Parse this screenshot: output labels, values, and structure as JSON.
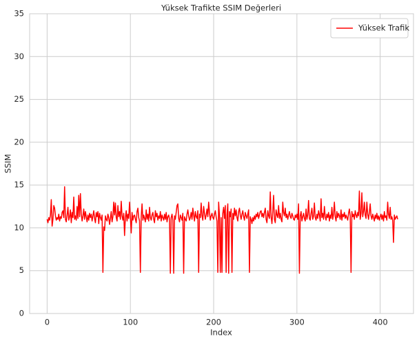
{
  "chart_data": {
    "type": "line",
    "title": "Yüksek Trafikte SSIM Değerleri",
    "x_label": "Index",
    "y_label": "SSIM",
    "xlim": [
      -21,
      440
    ],
    "xticks": [
      0,
      100,
      200,
      300,
      400
    ],
    "ylim": [
      0,
      35
    ],
    "yticks": [
      0,
      5,
      10,
      15,
      20,
      25,
      30,
      35
    ],
    "grid": true,
    "legend": "upper right",
    "series": [
      {
        "name": "Yüksek Trafik",
        "color": "#ff0000",
        "values": [
          11.0,
          10.6,
          11.2,
          10.9,
          11.5,
          13.3,
          10.2,
          11.0,
          12.6,
          12.3,
          11.4,
          10.9,
          11.2,
          11.0,
          11.6,
          10.8,
          11.3,
          11.1,
          11.8,
          12.0,
          11.2,
          14.8,
          11.0,
          10.7,
          11.5,
          12.4,
          10.9,
          11.3,
          12.1,
          10.6,
          11.8,
          11.2,
          13.6,
          11.0,
          11.4,
          10.9,
          12.5,
          11.1,
          13.8,
          11.3,
          14.0,
          11.6,
          10.8,
          11.4,
          12.2,
          11.0,
          11.9,
          11.3,
          10.7,
          11.5,
          10.9,
          11.7,
          11.2,
          11.6,
          10.8,
          11.4,
          12.0,
          11.1,
          10.6,
          11.8,
          11.3,
          11.9,
          10.5,
          11.7,
          11.2,
          10.9,
          11.5,
          4.8,
          10.1,
          9.7,
          11.4,
          11.0,
          10.8,
          11.6,
          11.2,
          10.4,
          11.1,
          11.9,
          10.7,
          11.3,
          13.0,
          11.5,
          12.9,
          11.2,
          10.8,
          12.6,
          11.3,
          11.9,
          11.0,
          13.1,
          11.4,
          10.9,
          11.7,
          9.1,
          11.2,
          12.0,
          10.8,
          11.6,
          11.1,
          13.0,
          11.3,
          9.4,
          11.8,
          10.9,
          11.4,
          11.5,
          11.0,
          10.6,
          11.9,
          12.3,
          11.2,
          10.8,
          4.8,
          11.3,
          12.8,
          10.9,
          11.5,
          11.1,
          10.7,
          12.1,
          11.0,
          11.6,
          10.8,
          12.4,
          11.2,
          10.9,
          11.5,
          11.8,
          11.0,
          10.6,
          12.0,
          11.3,
          11.7,
          10.9,
          11.4,
          11.1,
          11.9,
          10.8,
          11.5,
          11.2,
          10.9,
          11.6,
          11.0,
          11.8,
          10.7,
          11.3,
          11.5,
          11.0,
          4.7,
          11.2,
          11.6,
          10.9,
          4.7,
          11.4,
          11.0,
          11.8,
          12.6,
          12.8,
          11.1,
          10.7,
          11.5,
          11.2,
          10.9,
          11.7,
          4.7,
          11.3,
          11.0,
          10.8,
          11.6,
          12.1,
          11.4,
          10.9,
          11.2,
          11.8,
          11.0,
          12.3,
          11.5,
          10.8,
          11.9,
          11.3,
          11.1,
          12.0,
          4.8,
          11.6,
          11.2,
          12.9,
          11.4,
          10.9,
          12.5,
          11.7,
          11.0,
          11.5,
          12.2,
          11.3,
          13.0,
          11.8,
          10.9,
          11.4,
          11.7,
          11.2,
          11.0,
          11.6,
          12.0,
          11.3,
          10.8,
          4.8,
          13.0,
          11.4,
          4.8,
          11.2,
          4.8,
          11.7,
          12.4,
          11.1,
          12.6,
          4.8,
          11.5,
          12.8,
          4.7,
          11.9,
          11.3,
          12.2,
          4.8,
          11.7,
          11.0,
          12.3,
          11.4,
          12.1,
          11.2,
          10.8,
          11.9,
          12.3,
          11.5,
          11.0,
          11.6,
          12.0,
          11.3,
          10.9,
          11.8,
          11.4,
          11.1,
          11.6,
          12.1,
          4.8,
          11.3,
          11.0,
          10.5,
          11.2,
          10.8,
          11.4,
          11.0,
          11.6,
          11.3,
          11.8,
          11.1,
          11.5,
          11.9,
          12.0,
          11.3,
          11.7,
          11.2,
          11.8,
          12.3,
          11.0,
          10.6,
          12.0,
          11.4,
          11.1,
          14.2,
          11.3,
          10.5,
          11.9,
          13.8,
          11.0,
          10.6,
          12.1,
          11.5,
          11.2,
          12.6,
          11.1,
          11.7,
          11.0,
          10.7,
          13.0,
          11.8,
          11.4,
          12.3,
          11.2,
          11.6,
          11.0,
          11.5,
          11.9,
          11.3,
          11.1,
          11.7,
          11.4,
          11.0,
          10.9,
          11.5,
          11.2,
          11.6,
          11.0,
          12.8,
          4.7,
          11.4,
          11.9,
          10.8,
          11.3,
          11.7,
          11.1,
          10.8,
          12.2,
          11.0,
          11.5,
          13.2,
          11.1,
          10.9,
          11.7,
          12.3,
          11.0,
          11.4,
          12.9,
          11.2,
          10.9,
          11.6,
          11.1,
          12.0,
          11.5,
          10.8,
          13.4,
          11.2,
          11.7,
          11.0,
          12.5,
          11.3,
          10.9,
          11.6,
          11.2,
          11.8,
          10.8,
          11.5,
          11.1,
          12.4,
          11.0,
          11.6,
          13.0,
          11.3,
          10.8,
          11.9,
          11.2,
          11.7,
          11.4,
          11.0,
          12.1,
          10.9,
          11.6,
          11.3,
          11.8,
          11.1,
          11.5,
          11.2,
          10.9,
          11.7,
          12.2,
          11.4,
          4.8,
          11.9,
          11.3,
          11.6,
          11.0,
          12.0,
          11.5,
          11.2,
          11.8,
          11.4,
          14.3,
          11.0,
          11.7,
          14.1,
          11.3,
          11.9,
          13.0,
          11.5,
          11.1,
          13.0,
          11.6,
          11.0,
          11.8,
          12.8,
          11.4,
          11.0,
          11.6,
          11.2,
          10.8,
          11.5,
          11.1,
          11.7,
          11.0,
          11.4,
          10.9,
          11.3,
          11.6,
          11.0,
          11.5,
          10.8,
          11.9,
          11.2,
          11.4,
          10.9,
          13.0,
          11.6,
          11.1,
          12.4,
          11.0,
          11.3,
          10.9,
          8.3,
          11.5,
          11.0,
          11.2,
          11.4,
          11.0
        ]
      }
    ]
  }
}
